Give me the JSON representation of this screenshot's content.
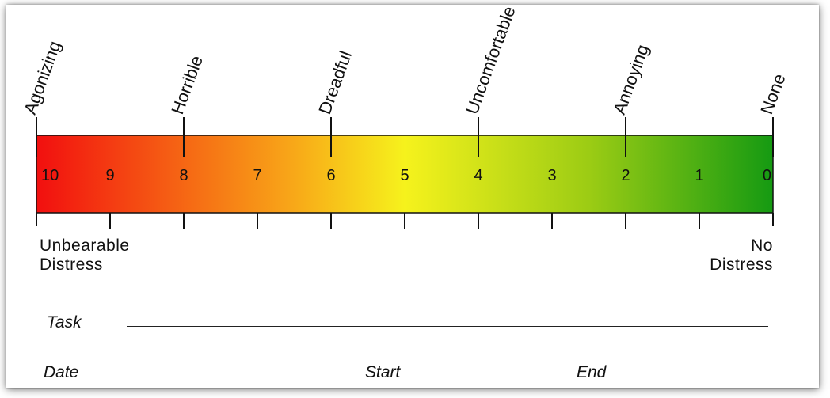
{
  "scale": {
    "numbers": [
      "10",
      "9",
      "8",
      "7",
      "6",
      "5",
      "4",
      "3",
      "2",
      "1",
      "0"
    ],
    "anchors": [
      {
        "label": "Agonizing",
        "value": 10
      },
      {
        "label": "Horrible",
        "value": 8
      },
      {
        "label": "Dreadful",
        "value": 6
      },
      {
        "label": "Uncomfortable",
        "value": 4
      },
      {
        "label": "Annoying",
        "value": 2
      },
      {
        "label": "None",
        "value": 0
      }
    ],
    "gradient_colors": [
      "#f20f0f",
      "#f8a818",
      "#f6f21c",
      "#9ccc14",
      "#159a12"
    ],
    "left_label_line1": "Unbearable",
    "left_label_line2": "Distress",
    "right_label_line1": "No",
    "right_label_line2": "Distress"
  },
  "form": {
    "task_label": "Task",
    "date_label": "Date",
    "start_label": "Start",
    "end_label": "End"
  }
}
